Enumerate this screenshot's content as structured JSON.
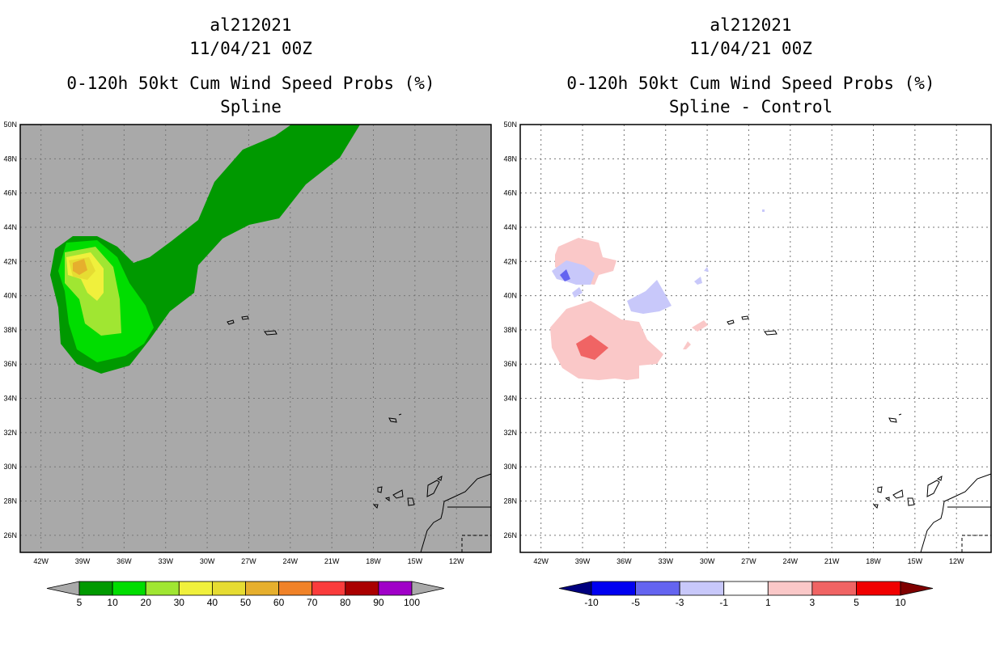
{
  "chart_data": [
    {
      "type": "heatmap",
      "storm_id": "al212021",
      "datetime": "11/04/21 00Z",
      "title": "0-120h 50kt Cum Wind Speed Probs (%)",
      "subtitle": "Spline",
      "xlabel": "",
      "ylabel": "",
      "xlim": [
        -43.5,
        -9.5
      ],
      "ylim": [
        25,
        50
      ],
      "x_ticks": [
        "42W",
        "39W",
        "36W",
        "33W",
        "30W",
        "27W",
        "24W",
        "21W",
        "18W",
        "15W",
        "12W"
      ],
      "y_ticks": [
        "50N",
        "48N",
        "46N",
        "44N",
        "42N",
        "40N",
        "38N",
        "36N",
        "34N",
        "32N",
        "30N",
        "28N",
        "26N"
      ],
      "grid": true,
      "background": "#a9a9a9",
      "colorbar": {
        "labels": [
          "5",
          "10",
          "20",
          "30",
          "40",
          "50",
          "60",
          "70",
          "80",
          "90",
          "100"
        ],
        "colors": [
          "#009900",
          "#00dd00",
          "#a0e632",
          "#f0f03c",
          "#e6dc32",
          "#e6af2d",
          "#f08228",
          "#fa3c3c",
          "#aa0000",
          "#a000c8"
        ],
        "extend_colors": [
          "#aaaaaa",
          "#aaaaaa"
        ]
      },
      "contour_levels": [
        {
          "level": 5,
          "color": "#009900"
        },
        {
          "level": 10,
          "color": "#00dd00"
        },
        {
          "level": 20,
          "color": "#a0e632"
        },
        {
          "level": 30,
          "color": "#f0f03c"
        },
        {
          "level": 40,
          "color": "#e6dc32"
        },
        {
          "level": 50,
          "color": "#e6af2d"
        }
      ],
      "max_probability_location": {
        "lon": -38.9,
        "lat": 41.8,
        "range": "50-60"
      }
    },
    {
      "type": "heatmap",
      "storm_id": "al212021",
      "datetime": "11/04/21 00Z",
      "title": "0-120h 50kt Cum Wind Speed Probs (%)",
      "subtitle": "Spline - Control",
      "xlabel": "",
      "ylabel": "",
      "xlim": [
        -43.5,
        -9.5
      ],
      "ylim": [
        25,
        50
      ],
      "x_ticks": [
        "42W",
        "39W",
        "36W",
        "33W",
        "30W",
        "27W",
        "24W",
        "21W",
        "18W",
        "15W",
        "12W"
      ],
      "y_ticks": [
        "50N",
        "48N",
        "46N",
        "44N",
        "42N",
        "40N",
        "38N",
        "36N",
        "34N",
        "32N",
        "30N",
        "28N",
        "26N"
      ],
      "grid": true,
      "background": "#ffffff",
      "colorbar": {
        "labels": [
          "-10",
          "-5",
          "-3",
          "-1",
          "1",
          "3",
          "5",
          "10"
        ],
        "colors": [
          "#0000f0",
          "#6464f0",
          "#c8c8fa",
          "#ffffff",
          "#fac8c8",
          "#f06464",
          "#f00000"
        ],
        "extend_colors": [
          "#00007f",
          "#7f0000"
        ]
      },
      "contour_levels": [
        {
          "range": "1 to 3",
          "color": "#fac8c8"
        },
        {
          "range": "3 to 5",
          "color": "#f06464"
        },
        {
          "range": "-3 to -1",
          "color": "#c8c8fa"
        },
        {
          "range": "-5 to -3",
          "color": "#6464f0"
        }
      ]
    }
  ]
}
